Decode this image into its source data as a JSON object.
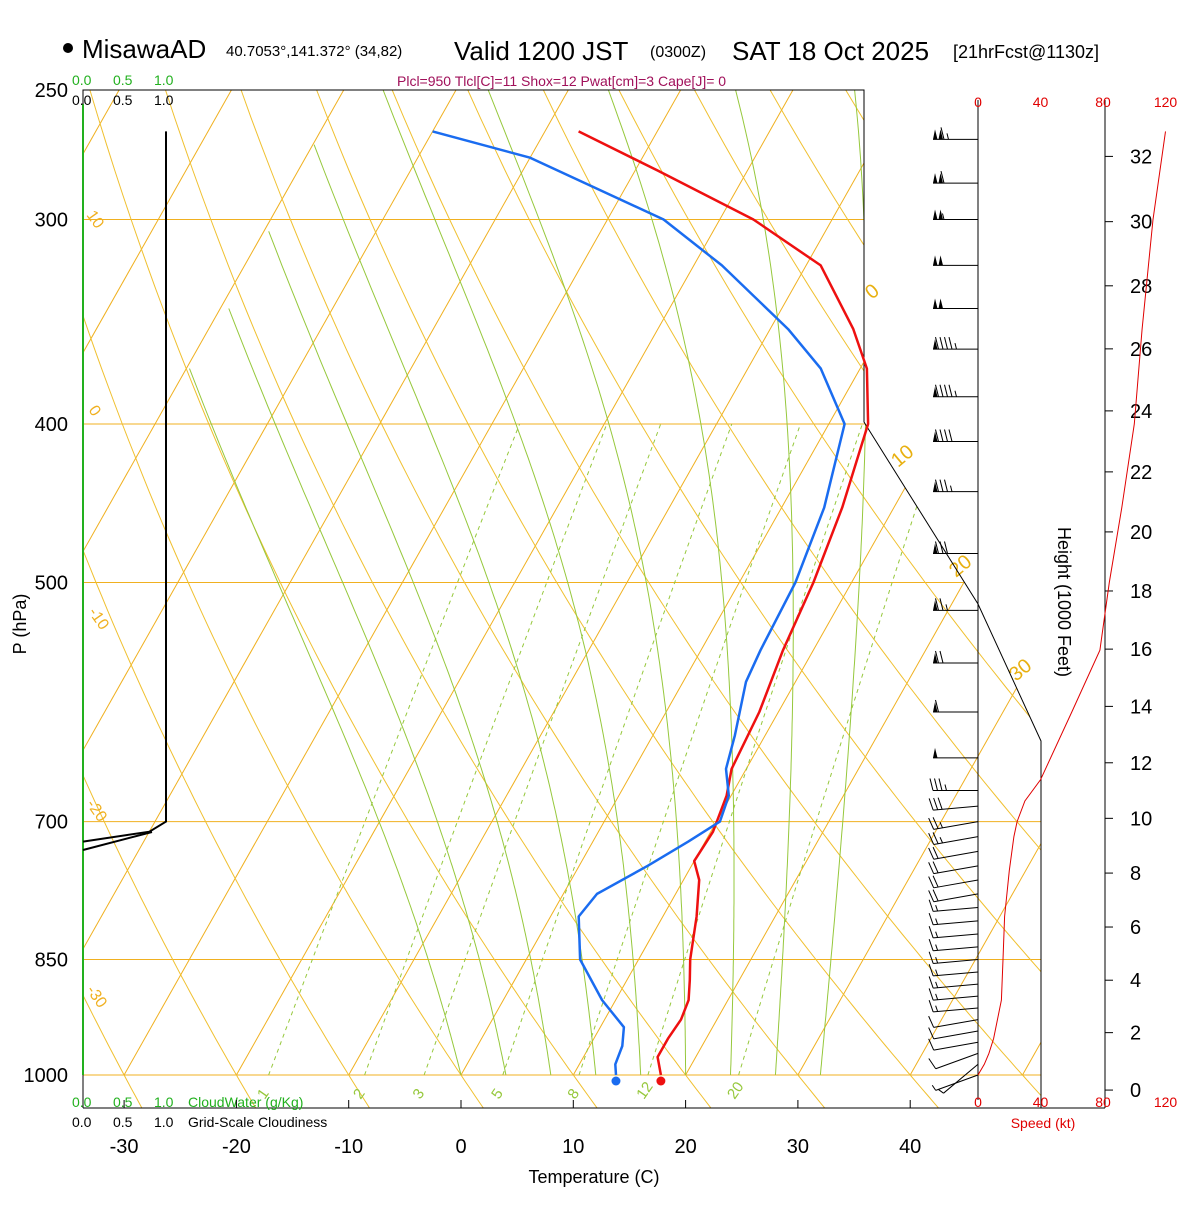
{
  "header": {
    "station": "MisawaAD",
    "coords": "40.7053°,141.372° (34,82)",
    "valid_prefix": "Valid 1200 JST",
    "valid_utc": "(0300Z)",
    "valid_date": "SAT 18 Oct 2025",
    "forecast": "[21hrFcst@1130z]"
  },
  "params_line": "Plcl=950 Tlcl[C]=11 Shox=12 Pwat[cm]=3 Cape[J]= 0",
  "colors": {
    "temperature": "#ee1010",
    "dewpoint": "#1a6cf0",
    "isotherm": "#f0b020",
    "mixing_ratio": "#96c83c",
    "dry_adiabat": "#f0c030",
    "moist_adiabat": "#96c83c",
    "cloud_water": "#22b01e",
    "wind_speed": "#e00000",
    "params": "#a0105a"
  },
  "chart_data": {
    "type": "line",
    "subtype": "skew-T log-P sounding",
    "title": "MisawaAD Valid 1200 JST (0300Z) SAT 18 Oct 2025 [21hrFcst@1130z]",
    "xlabel": "Temperature (C)",
    "ylabel": "P (hPa)",
    "right_label": "Height (1000 Feet)",
    "wind_label": "Speed (kt)",
    "x_ticks": [
      -30,
      -20,
      -10,
      0,
      10,
      20,
      30,
      40
    ],
    "pressure_ticks": [
      250,
      300,
      400,
      500,
      700,
      850,
      1000
    ],
    "height_ticks": [
      0,
      2,
      4,
      6,
      8,
      10,
      12,
      14,
      16,
      18,
      20,
      22,
      24,
      26,
      28,
      30,
      32
    ],
    "wind_speed_ticks": [
      0,
      40,
      80,
      120
    ],
    "cloud_scale_labels": [
      "0.0",
      "0.5",
      "1.0"
    ],
    "cloud_water_label": "CloudWater (g/Kg)",
    "cloudiness_label": "Grid-Scale Cloudiness",
    "isotherm_labels": [
      "10",
      "0",
      "-10",
      "-20",
      "-30"
    ],
    "mixing_ratio_labels": [
      "1",
      "2",
      "3",
      "5",
      "8",
      "12",
      "20"
    ],
    "dry_adiabat_labels": [
      "0",
      "10",
      "20",
      "30"
    ],
    "series": [
      {
        "name": "Temperature",
        "points": [
          [
            17.8,
            1000
          ],
          [
            16.6,
            975
          ],
          [
            16.6,
            950
          ],
          [
            16.8,
            925
          ],
          [
            16.5,
            900
          ],
          [
            15.6,
            875
          ],
          [
            14.6,
            850
          ],
          [
            13.0,
            800
          ],
          [
            11.4,
            760
          ],
          [
            10.0,
            740
          ],
          [
            10.2,
            710
          ],
          [
            9.6,
            675
          ],
          [
            8.7,
            650
          ],
          [
            8.3,
            600
          ],
          [
            7.3,
            550
          ],
          [
            6.6,
            500
          ],
          [
            5.4,
            450
          ],
          [
            3.5,
            400
          ],
          [
            0.6,
            370
          ],
          [
            -2.6,
            350
          ],
          [
            -8.7,
            320
          ],
          [
            -17.0,
            300
          ],
          [
            -28.0,
            280
          ],
          [
            -37.0,
            265
          ]
        ]
      },
      {
        "name": "Dewpoint",
        "points": [
          [
            13.8,
            1000
          ],
          [
            13.2,
            985
          ],
          [
            12.9,
            960
          ],
          [
            12.1,
            935
          ],
          [
            8.8,
            900
          ],
          [
            4.8,
            850
          ],
          [
            2.5,
            800
          ],
          [
            3.0,
            775
          ],
          [
            6.1,
            745
          ],
          [
            8.5,
            720
          ],
          [
            10.3,
            700
          ],
          [
            9.8,
            675
          ],
          [
            8.2,
            650
          ],
          [
            7.3,
            620
          ],
          [
            5.6,
            575
          ],
          [
            5.3,
            550
          ],
          [
            5.0,
            500
          ],
          [
            3.8,
            450
          ],
          [
            1.4,
            400
          ],
          [
            -3.5,
            370
          ],
          [
            -8.4,
            350
          ],
          [
            -17.5,
            320
          ],
          [
            -25.0,
            300
          ],
          [
            -40.0,
            275
          ],
          [
            -50.0,
            265
          ]
        ]
      }
    ],
    "cloud_water_profile": [
      [
        0.0,
        1000
      ],
      [
        0.0,
        700
      ],
      [
        0.0,
        250
      ]
    ],
    "cloudiness_profile": [
      [
        0.0,
        720
      ],
      [
        0.8,
        710
      ],
      [
        1.0,
        700
      ],
      [
        1.0,
        660
      ],
      [
        1.0,
        600
      ],
      [
        1.0,
        500
      ],
      [
        1.0,
        400
      ],
      [
        1.0,
        300
      ],
      [
        1.0,
        265
      ]
    ],
    "wind_speed_profile_kt": [
      [
        0,
        1000
      ],
      [
        4,
        985
      ],
      [
        7,
        970
      ],
      [
        10,
        950
      ],
      [
        15,
        900
      ],
      [
        16,
        850
      ],
      [
        17,
        800
      ],
      [
        20,
        750
      ],
      [
        23,
        715
      ],
      [
        25,
        700
      ],
      [
        30,
        680
      ],
      [
        40,
        660
      ],
      [
        60,
        600
      ],
      [
        78,
        550
      ],
      [
        84,
        500
      ],
      [
        92,
        450
      ],
      [
        100,
        400
      ],
      [
        105,
        350
      ],
      [
        112,
        300
      ],
      [
        120,
        265
      ]
    ],
    "wind_barbs": [
      {
        "p": 1000,
        "dir": 250,
        "kt": 3
      },
      {
        "p": 985,
        "dir": 230,
        "kt": 5
      },
      {
        "p": 970,
        "dir": 250,
        "kt": 10
      },
      {
        "p": 955,
        "dir": 260,
        "kt": 10
      },
      {
        "p": 940,
        "dir": 260,
        "kt": 10
      },
      {
        "p": 925,
        "dir": 260,
        "kt": 10
      },
      {
        "p": 910,
        "dir": 265,
        "kt": 15
      },
      {
        "p": 895,
        "dir": 265,
        "kt": 15
      },
      {
        "p": 880,
        "dir": 265,
        "kt": 15
      },
      {
        "p": 865,
        "dir": 265,
        "kt": 15
      },
      {
        "p": 850,
        "dir": 265,
        "kt": 15
      },
      {
        "p": 835,
        "dir": 265,
        "kt": 15
      },
      {
        "p": 820,
        "dir": 265,
        "kt": 15
      },
      {
        "p": 805,
        "dir": 265,
        "kt": 15
      },
      {
        "p": 790,
        "dir": 265,
        "kt": 15
      },
      {
        "p": 775,
        "dir": 260,
        "kt": 20
      },
      {
        "p": 760,
        "dir": 260,
        "kt": 20
      },
      {
        "p": 745,
        "dir": 260,
        "kt": 20
      },
      {
        "p": 730,
        "dir": 260,
        "kt": 20
      },
      {
        "p": 715,
        "dir": 260,
        "kt": 25
      },
      {
        "p": 700,
        "dir": 260,
        "kt": 25
      },
      {
        "p": 685,
        "dir": 265,
        "kt": 30
      },
      {
        "p": 670,
        "dir": 270,
        "kt": 35
      },
      {
        "p": 640,
        "dir": 270,
        "kt": 50
      },
      {
        "p": 600,
        "dir": 270,
        "kt": 60
      },
      {
        "p": 560,
        "dir": 270,
        "kt": 70
      },
      {
        "p": 520,
        "dir": 270,
        "kt": 75
      },
      {
        "p": 480,
        "dir": 270,
        "kt": 80
      },
      {
        "p": 440,
        "dir": 270,
        "kt": 85
      },
      {
        "p": 410,
        "dir": 270,
        "kt": 90
      },
      {
        "p": 385,
        "dir": 270,
        "kt": 95
      },
      {
        "p": 360,
        "dir": 270,
        "kt": 95
      },
      {
        "p": 340,
        "dir": 270,
        "kt": 100
      },
      {
        "p": 320,
        "dir": 270,
        "kt": 100
      },
      {
        "p": 300,
        "dir": 270,
        "kt": 105
      },
      {
        "p": 285,
        "dir": 270,
        "kt": 110
      },
      {
        "p": 268,
        "dir": 270,
        "kt": 115
      }
    ],
    "surface_markers": [
      {
        "name": "Temperature",
        "t": 17.8,
        "p": 1000
      },
      {
        "name": "Dewpoint",
        "t": 13.8,
        "p": 1000
      }
    ]
  }
}
